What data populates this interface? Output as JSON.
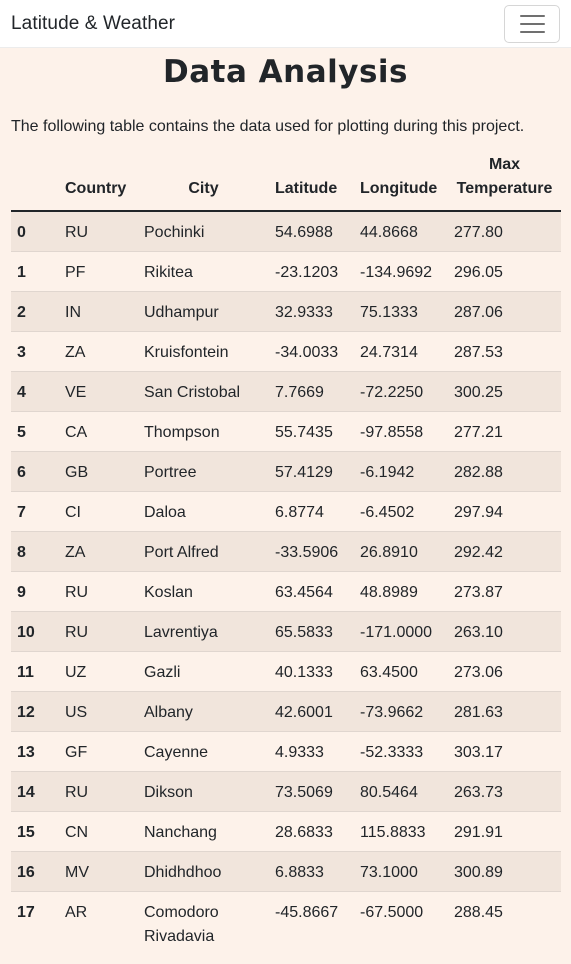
{
  "navbar": {
    "brand": "Latitude & Weather",
    "menu_icon": "hamburger-menu-icon"
  },
  "page": {
    "title": "Data Analysis",
    "intro": "The following table contains the data used for plotting during this project."
  },
  "table": {
    "headers": [
      "",
      "Country",
      "City",
      "Latitude",
      "Longitude",
      "Max Temperature"
    ],
    "rows": [
      [
        "0",
        "RU",
        "Pochinki",
        "54.6988",
        "44.8668",
        "277.80"
      ],
      [
        "1",
        "PF",
        "Rikitea",
        "-23.1203",
        "-134.9692",
        "296.05"
      ],
      [
        "2",
        "IN",
        "Udhampur",
        "32.9333",
        "75.1333",
        "287.06"
      ],
      [
        "3",
        "ZA",
        "Kruisfontein",
        "-34.0033",
        "24.7314",
        "287.53"
      ],
      [
        "4",
        "VE",
        "San Cristobal",
        "7.7669",
        "-72.2250",
        "300.25"
      ],
      [
        "5",
        "CA",
        "Thompson",
        "55.7435",
        "-97.8558",
        "277.21"
      ],
      [
        "6",
        "GB",
        "Portree",
        "57.4129",
        "-6.1942",
        "282.88"
      ],
      [
        "7",
        "CI",
        "Daloa",
        "6.8774",
        "-6.4502",
        "297.94"
      ],
      [
        "8",
        "ZA",
        "Port Alfred",
        "-33.5906",
        "26.8910",
        "292.42"
      ],
      [
        "9",
        "RU",
        "Koslan",
        "63.4564",
        "48.8989",
        "273.87"
      ],
      [
        "10",
        "RU",
        "Lavrentiya",
        "65.5833",
        "-171.0000",
        "263.10"
      ],
      [
        "11",
        "UZ",
        "Gazli",
        "40.1333",
        "63.4500",
        "273.06"
      ],
      [
        "12",
        "US",
        "Albany",
        "42.6001",
        "-73.9662",
        "281.63"
      ],
      [
        "13",
        "GF",
        "Cayenne",
        "4.9333",
        "-52.3333",
        "303.17"
      ],
      [
        "14",
        "RU",
        "Dikson",
        "73.5069",
        "80.5464",
        "263.73"
      ],
      [
        "15",
        "CN",
        "Nanchang",
        "28.6833",
        "115.8833",
        "291.91"
      ],
      [
        "16",
        "MV",
        "Dhidhdhoo",
        "6.8833",
        "73.1000",
        "300.89"
      ],
      [
        "17",
        "AR",
        "Comodoro Rivadavia",
        "-45.8667",
        "-67.5000",
        "288.45"
      ]
    ]
  }
}
